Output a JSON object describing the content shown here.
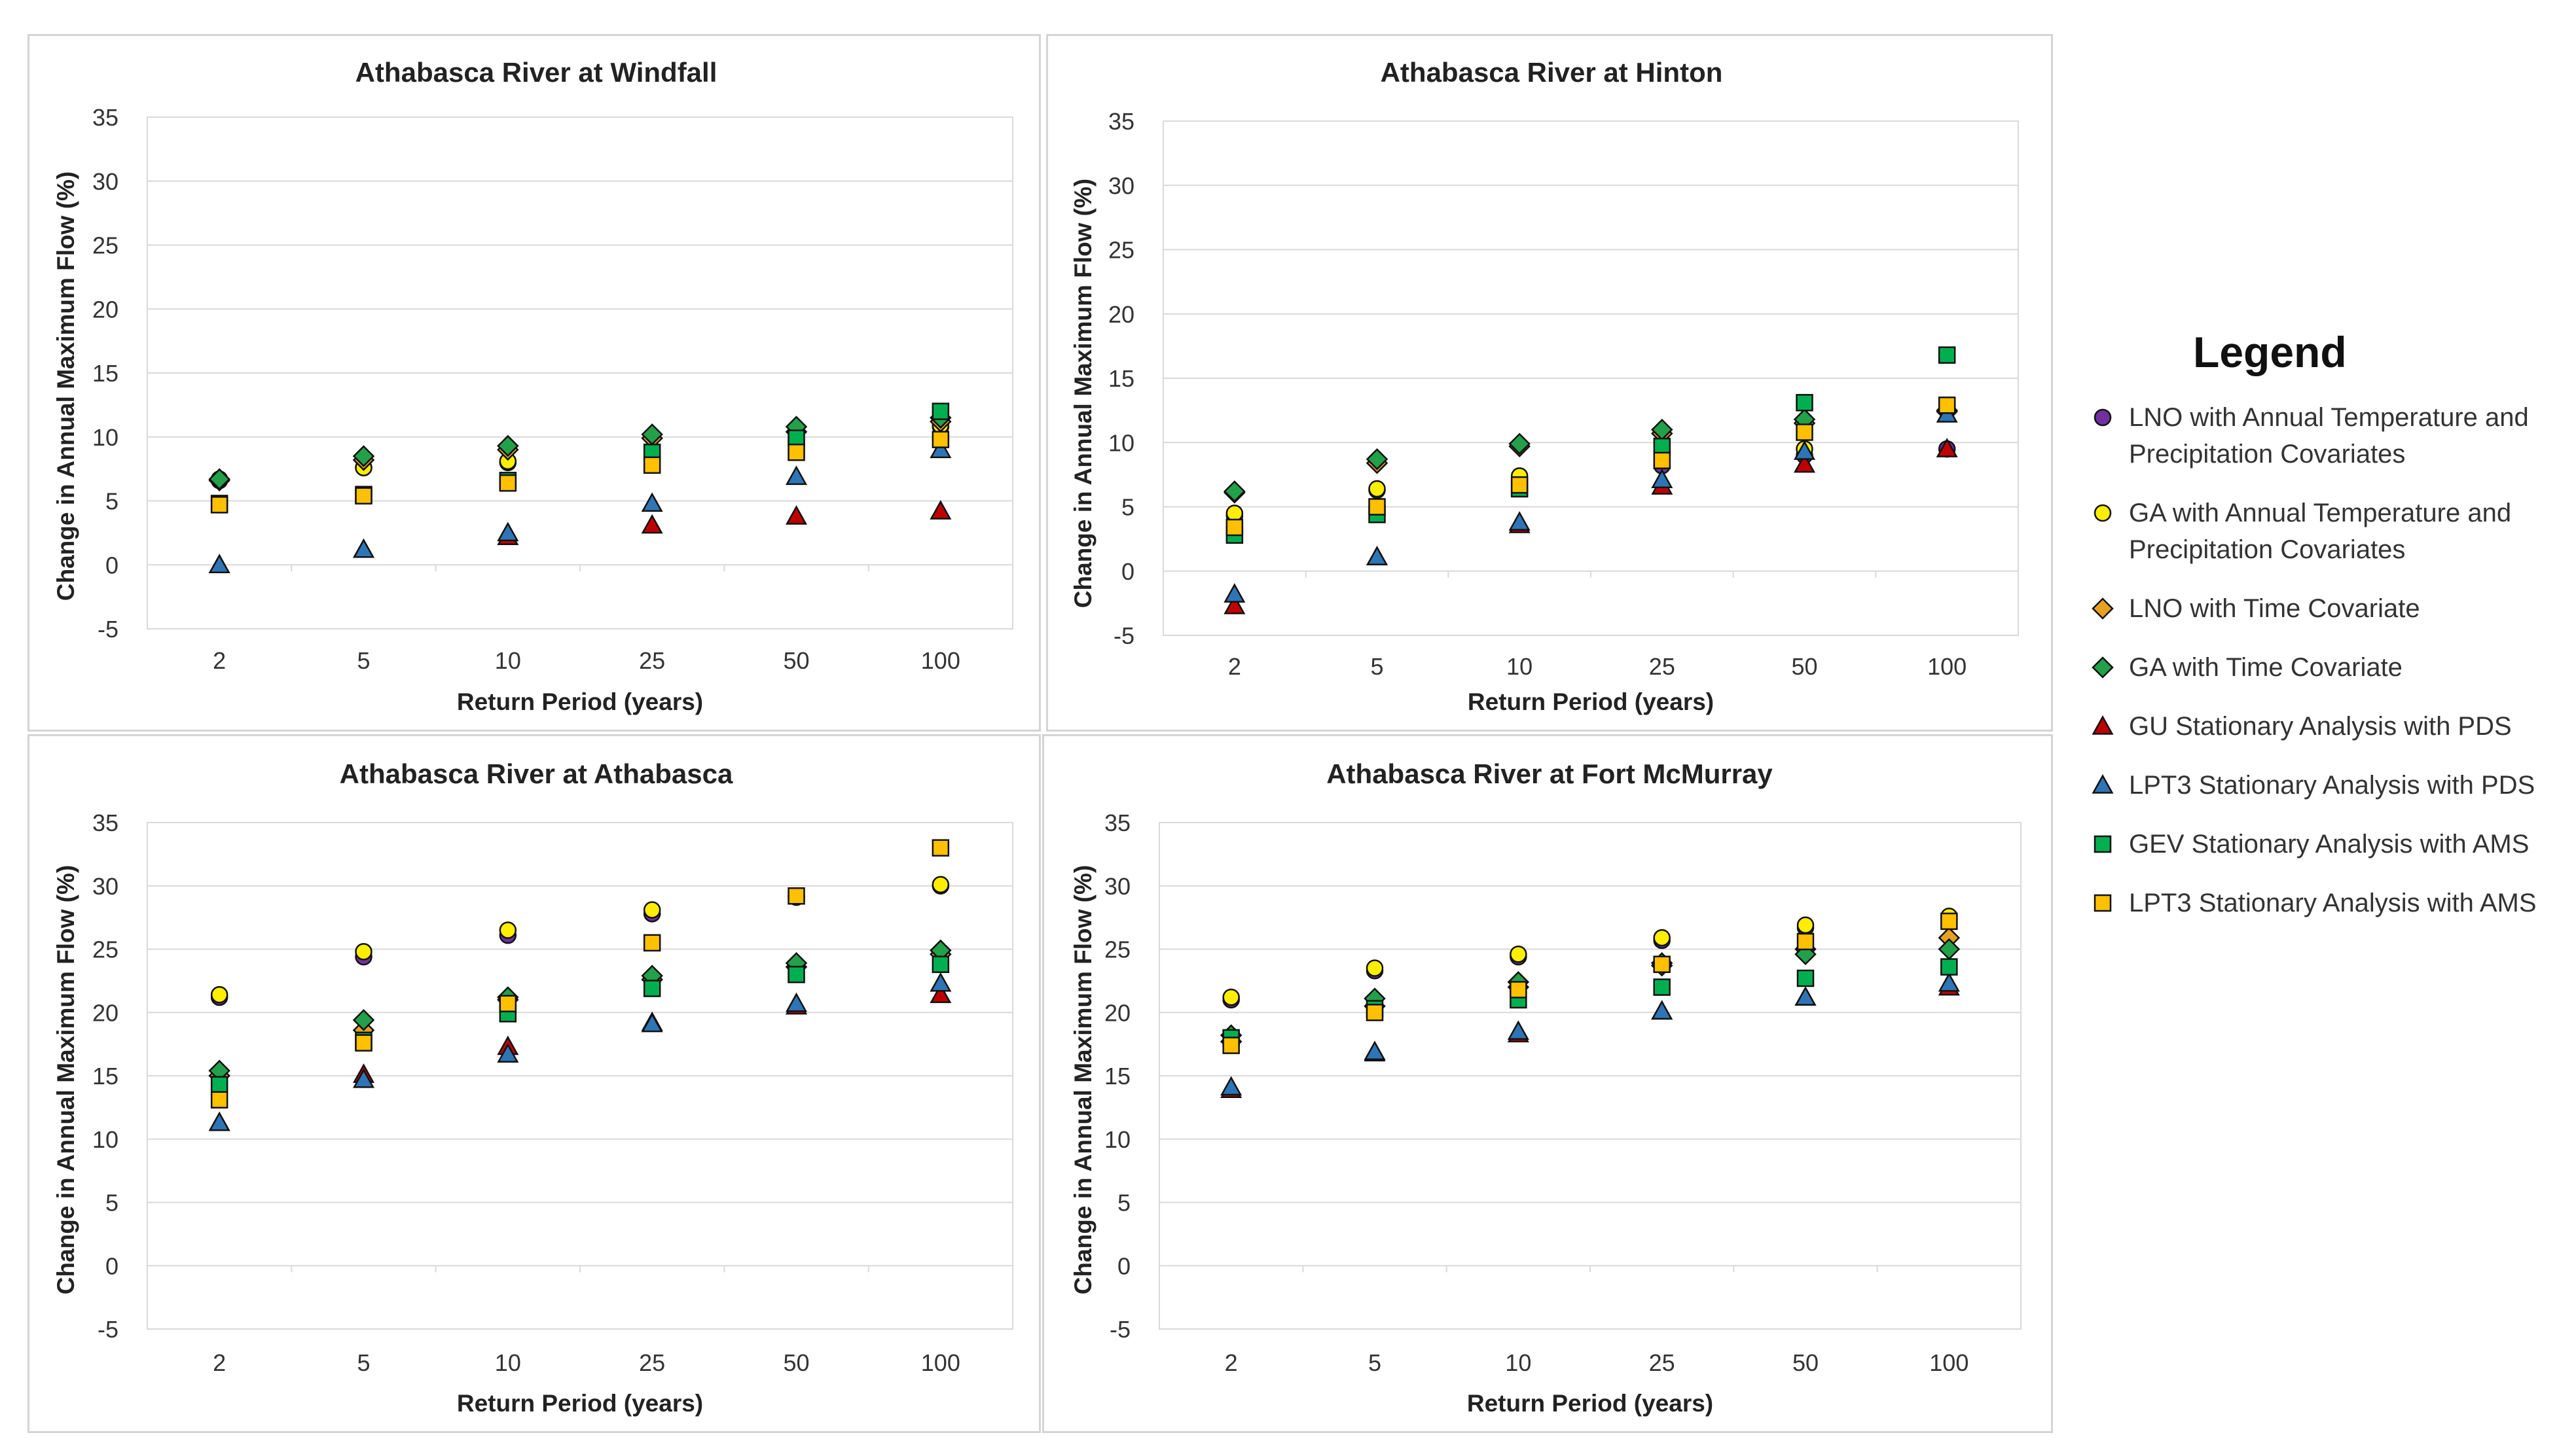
{
  "chart_data": [
    {
      "type": "scatter",
      "title": "Athabasca River at Windfall",
      "xlabel": "Return Period (years)",
      "ylabel": "Change in Annual Maximum Flow (%)",
      "categories": [
        "2",
        "5",
        "10",
        "25",
        "50",
        "100"
      ],
      "ylim": [
        -5,
        35
      ],
      "yticks": [
        "35",
        "30",
        "25",
        "20",
        "15",
        "10",
        "5",
        "0",
        "-5"
      ],
      "series": [
        {
          "name": "LNO with Annual Temperature and Precipitation Covariates",
          "values": [
            6.6,
            7.6,
            8.0,
            8.4,
            9.6,
            10.8
          ]
        },
        {
          "name": "GA with Annual Temperature and Precipitation Covariates",
          "values": [
            6.7,
            7.6,
            8.1,
            8.5,
            9.7,
            10.9
          ]
        },
        {
          "name": "LNO with Time Covariate",
          "values": [
            6.6,
            8.2,
            9.0,
            9.9,
            10.4,
            11.2
          ]
        },
        {
          "name": "GA with Time Covariate",
          "values": [
            6.7,
            8.5,
            9.3,
            10.2,
            10.8,
            11.5
          ]
        },
        {
          "name": "GU Stationary Analysis with PDS",
          "values": [
            0.0,
            1.2,
            2.2,
            3.1,
            3.8,
            4.2
          ]
        },
        {
          "name": "LPT3 Stationary Analysis with PDS",
          "values": [
            0.0,
            1.2,
            2.5,
            4.8,
            6.9,
            9.0
          ]
        },
        {
          "name": "GEV Stationary Analysis with AMS",
          "values": [
            4.8,
            5.5,
            6.6,
            8.8,
            9.9,
            12.0
          ]
        },
        {
          "name": "LPT3 Stationary Analysis with AMS",
          "values": [
            4.7,
            5.4,
            6.4,
            7.8,
            8.8,
            9.8
          ]
        }
      ]
    },
    {
      "type": "scatter",
      "title": "Athabasca River at Hinton",
      "xlabel": "Return Period (years)",
      "ylabel": "Change in Annual Maximum Flow (%)",
      "categories": [
        "2",
        "5",
        "10",
        "25",
        "50",
        "100"
      ],
      "ylim": [
        -5,
        35
      ],
      "yticks": [
        "35",
        "30",
        "25",
        "20",
        "15",
        "10",
        "5",
        "0",
        "-5"
      ],
      "series": [
        {
          "name": "LNO with Annual Temperature and Precipitation Covariates",
          "values": [
            4.3,
            6.3,
            7.2,
            8.2,
            9.0,
            9.5
          ]
        },
        {
          "name": "GA with Annual Temperature and Precipitation Covariates",
          "values": [
            4.5,
            6.4,
            7.4,
            8.6,
            9.5,
            12.8
          ]
        },
        {
          "name": "LNO with Time Covariate",
          "values": [
            6.1,
            8.4,
            9.7,
            10.7,
            11.5,
            12.5
          ]
        },
        {
          "name": "GA with Time Covariate",
          "values": [
            6.2,
            8.7,
            9.9,
            11.0,
            11.8,
            12.4
          ]
        },
        {
          "name": "GU Stationary Analysis with PDS",
          "values": [
            -2.7,
            1.1,
            3.6,
            6.6,
            8.3,
            9.5
          ]
        },
        {
          "name": "LPT3 Stationary Analysis with PDS",
          "values": [
            -1.8,
            1.1,
            3.8,
            7.1,
            9.3,
            12.2
          ]
        },
        {
          "name": "GEV Stationary Analysis with AMS",
          "values": [
            2.8,
            4.4,
            6.4,
            9.7,
            13.1,
            16.8
          ]
        },
        {
          "name": "LPT3 Stationary Analysis with AMS",
          "values": [
            3.4,
            5.0,
            6.7,
            8.6,
            10.8,
            12.9
          ]
        }
      ]
    },
    {
      "type": "scatter",
      "title": "Athabasca River at Athabasca",
      "xlabel": "Return Period (years)",
      "ylabel": "Change in Annual Maximum Flow (%)",
      "categories": [
        "2",
        "5",
        "10",
        "25",
        "50",
        "100"
      ],
      "ylim": [
        -5,
        35
      ],
      "yticks": [
        "35",
        "30",
        "25",
        "20",
        "15",
        "10",
        "5",
        "0",
        "-5"
      ],
      "series": [
        {
          "name": "LNO with Annual Temperature and Precipitation Covariates",
          "values": [
            21.2,
            24.4,
            26.1,
            27.8,
            29.1,
            30.0
          ]
        },
        {
          "name": "GA with Annual Temperature and Precipitation Covariates",
          "values": [
            21.4,
            24.8,
            26.5,
            28.1,
            29.2,
            30.1
          ]
        },
        {
          "name": "LNO with Time Covariate",
          "values": [
            15.0,
            18.6,
            21.0,
            22.6,
            23.6,
            24.6
          ]
        },
        {
          "name": "GA with Time Covariate",
          "values": [
            15.4,
            19.4,
            21.2,
            22.9,
            23.9,
            24.9
          ]
        },
        {
          "name": "GU Stationary Analysis with PDS",
          "values": [
            11.3,
            15.1,
            17.3,
            19.2,
            20.5,
            21.4
          ]
        },
        {
          "name": "LPT3 Stationary Analysis with PDS",
          "values": [
            11.3,
            14.7,
            16.7,
            19.1,
            20.7,
            22.3
          ]
        },
        {
          "name": "GEV Stationary Analysis with AMS",
          "values": [
            14.3,
            17.8,
            19.9,
            21.9,
            23.0,
            23.8
          ]
        },
        {
          "name": "LPT3 Stationary Analysis with AMS",
          "values": [
            13.1,
            17.6,
            20.7,
            25.5,
            29.2,
            33.0
          ]
        }
      ]
    },
    {
      "type": "scatter",
      "title": "Athabasca River at Fort McMurray",
      "xlabel": "Return Period (years)",
      "ylabel": "Change in Annual Maximum Flow (%)",
      "categories": [
        "2",
        "5",
        "10",
        "25",
        "50",
        "100"
      ],
      "ylim": [
        -5,
        35
      ],
      "yticks": [
        "35",
        "30",
        "25",
        "20",
        "15",
        "10",
        "5",
        "0",
        "-5"
      ],
      "series": [
        {
          "name": "LNO with Annual Temperature and Precipitation Covariates",
          "values": [
            21.0,
            23.3,
            24.4,
            25.7,
            26.7,
            27.5
          ]
        },
        {
          "name": "GA with Annual Temperature and Precipitation Covariates",
          "values": [
            21.2,
            23.5,
            24.6,
            25.9,
            26.9,
            27.6
          ]
        },
        {
          "name": "LNO with Time Covariate",
          "values": [
            17.7,
            20.5,
            22.0,
            23.7,
            25.0,
            25.9
          ]
        },
        {
          "name": "GA with Time Covariate",
          "values": [
            18.2,
            21.1,
            22.4,
            23.9,
            24.6,
            25.0
          ]
        },
        {
          "name": "GU Stationary Analysis with PDS",
          "values": [
            13.9,
            16.8,
            18.3,
            20.1,
            21.2,
            22.0
          ]
        },
        {
          "name": "LPT3 Stationary Analysis with PDS",
          "values": [
            14.1,
            16.9,
            18.5,
            20.1,
            21.2,
            22.3
          ]
        },
        {
          "name": "GEV Stationary Analysis with AMS",
          "values": [
            18.0,
            20.3,
            21.0,
            22.0,
            22.7,
            23.6
          ]
        },
        {
          "name": "LPT3 Stationary Analysis with AMS",
          "values": [
            17.4,
            20.0,
            21.8,
            23.8,
            25.6,
            27.2
          ]
        }
      ]
    }
  ],
  "legend": {
    "title": "Legend",
    "items": [
      {
        "label": "LNO with Annual Temperature and Precipitation Covariates",
        "marker": "circle",
        "color": "#7030a0"
      },
      {
        "label": "GA with Annual Temperature and Precipitation Covariates",
        "marker": "circle",
        "color": "#ffee00"
      },
      {
        "label": "LNO with Time Covariate",
        "marker": "diamond",
        "color": "#e8a020"
      },
      {
        "label": "GA with Time Covariate",
        "marker": "diamond",
        "color": "#22a04a"
      },
      {
        "label": "GU Stationary Analysis with PDS",
        "marker": "triangle",
        "color": "#c00000"
      },
      {
        "label": "LPT3 Stationary Analysis with PDS",
        "marker": "triangle",
        "color": "#2e75b6"
      },
      {
        "label": "GEV Stationary Analysis with AMS",
        "marker": "square",
        "color": "#00b050"
      },
      {
        "label": "LPT3 Stationary Analysis with AMS",
        "marker": "square",
        "color": "#ffc000"
      }
    ]
  }
}
